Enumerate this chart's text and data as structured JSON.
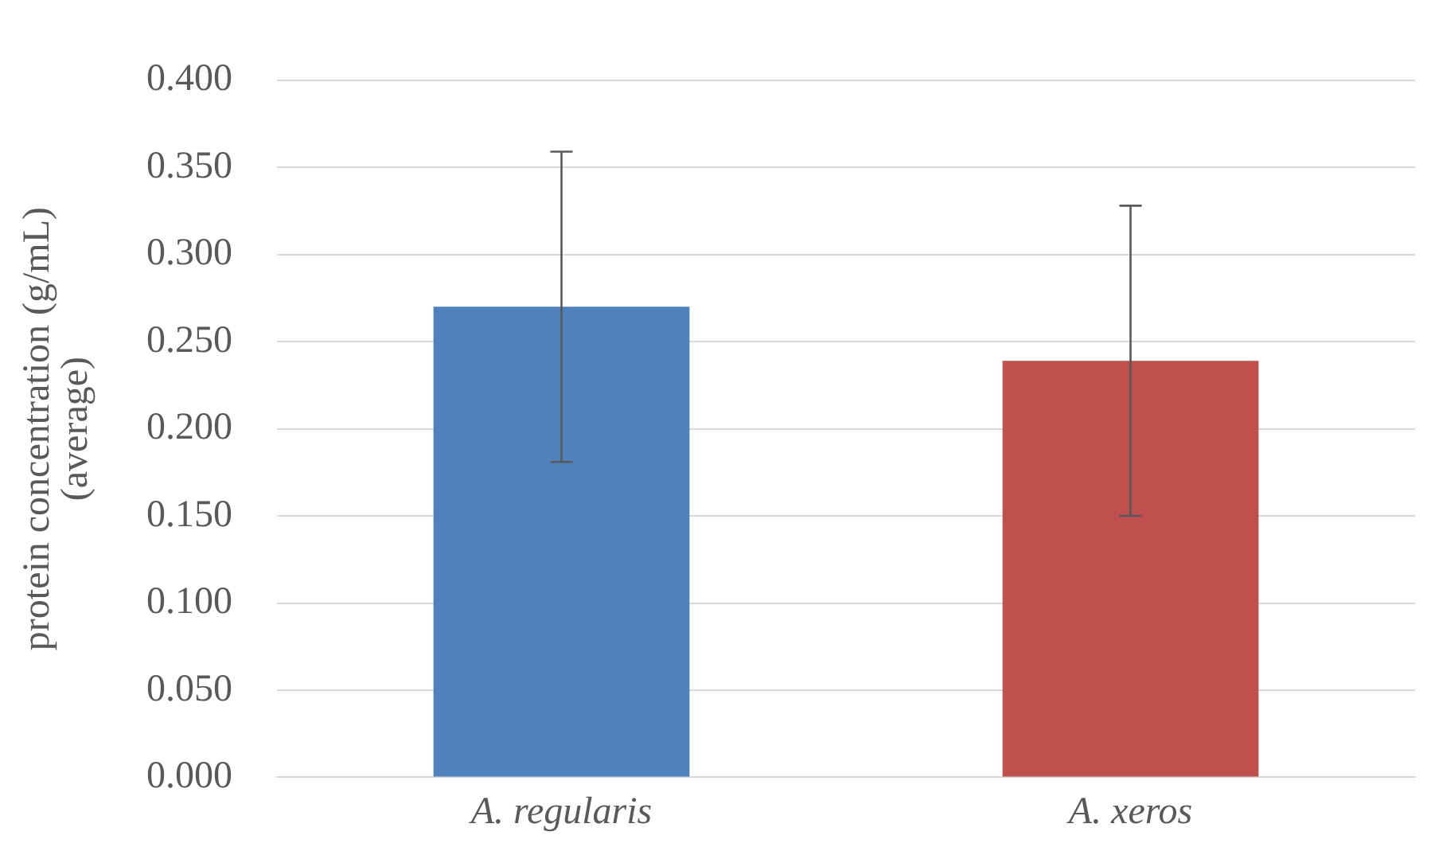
{
  "chart_data": {
    "type": "bar",
    "ylabel": "protein concentration (g/mL)\n(average)",
    "categories": [
      "A. regularis",
      "A. xeros"
    ],
    "values": [
      0.27,
      0.239
    ],
    "colors": [
      "#4f81bd",
      "#c0504d"
    ],
    "errors": [
      0.089,
      0.089
    ],
    "ylim": [
      0,
      0.4
    ],
    "yticks": [
      {
        "value": 0,
        "label": "0.000"
      },
      {
        "value": 0.05,
        "label": "0.050"
      },
      {
        "value": 0.1,
        "label": "0.100"
      },
      {
        "value": 0.15,
        "label": "0.150"
      },
      {
        "value": 0.2,
        "label": "0.200"
      },
      {
        "value": 0.25,
        "label": "0.250"
      },
      {
        "value": 0.3,
        "label": "0.300"
      },
      {
        "value": 0.35,
        "label": "0.350"
      },
      {
        "value": 0.4,
        "label": "0.400"
      }
    ],
    "grid": "y"
  }
}
